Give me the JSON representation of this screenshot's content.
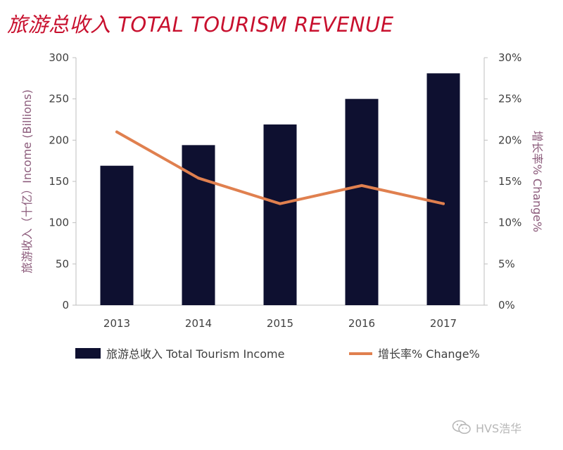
{
  "title": "旅游总收入 TOTAL TOURISM REVENUE",
  "colors": {
    "title": "#c8102e",
    "bar": "#0e1030",
    "line": "#e0804f",
    "axis_title": "#8b5a7a",
    "grid": "#bfbfbf"
  },
  "watermark": {
    "text": "HVS浩华",
    "icon": "wechat-icon"
  },
  "chart_data": {
    "type": "bar",
    "categories": [
      "2013",
      "2014",
      "2015",
      "2016",
      "2017"
    ],
    "series": [
      {
        "name": "旅游总收入 Total Tourism Income",
        "type": "bar",
        "axis": "left",
        "values": [
          169,
          194,
          219,
          250,
          281
        ]
      },
      {
        "name": "增长率% Change%",
        "type": "line",
        "axis": "right",
        "values": [
          21.0,
          15.4,
          12.3,
          14.5,
          12.3
        ]
      }
    ],
    "ylabel": "旅游收入（十亿）Income (Billions)",
    "y2label": "增长率% Change%",
    "ylim": [
      0,
      300
    ],
    "y2lim": [
      0,
      30
    ],
    "yticks": [
      "0",
      "50",
      "100",
      "150",
      "200",
      "250",
      "300"
    ],
    "y2ticks": [
      "0%",
      "5%",
      "10%",
      "15%",
      "20%",
      "25%",
      "30%"
    ],
    "grid": false,
    "legend": "bottom"
  }
}
